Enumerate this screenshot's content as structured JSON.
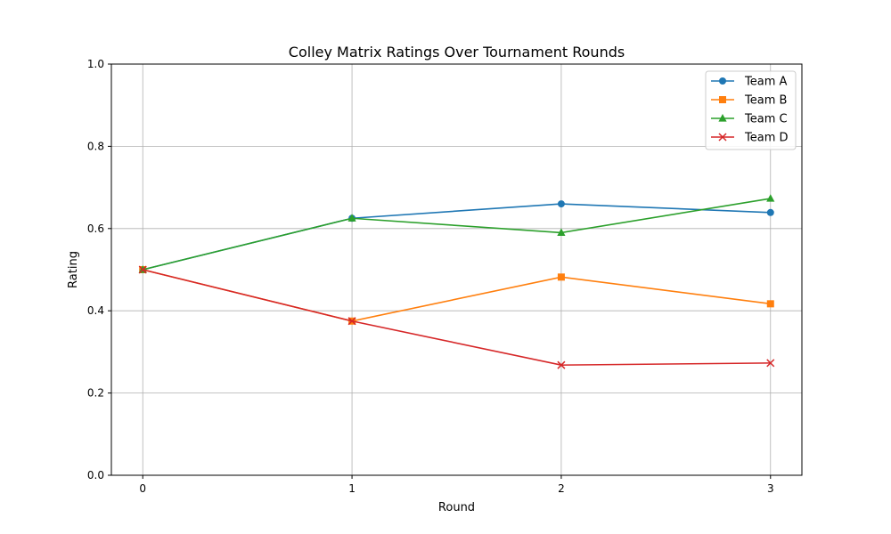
{
  "chart_data": {
    "type": "line",
    "title": "Colley Matrix Ratings Over Tournament Rounds",
    "xlabel": "Round",
    "ylabel": "Rating",
    "x": [
      0,
      1,
      2,
      3
    ],
    "xticks": [
      "0",
      "1",
      "2",
      "3"
    ],
    "xlim": [
      -0.15,
      3.15
    ],
    "ylim": [
      0.0,
      1.0
    ],
    "yticks": [
      "0.0",
      "0.2",
      "0.4",
      "0.6",
      "0.8",
      "1.0"
    ],
    "grid": true,
    "legend_position": "top-right",
    "series": [
      {
        "name": "Team A",
        "values": [
          0.5,
          0.625,
          0.66,
          0.639
        ],
        "color": "#1f77b4",
        "marker": "circle"
      },
      {
        "name": "Team B",
        "values": [
          0.5,
          0.375,
          0.482,
          0.417
        ],
        "color": "#ff7f0e",
        "marker": "square"
      },
      {
        "name": "Team C",
        "values": [
          0.5,
          0.625,
          0.59,
          0.673
        ],
        "color": "#2ca02c",
        "marker": "triangle"
      },
      {
        "name": "Team D",
        "values": [
          0.5,
          0.375,
          0.268,
          0.273
        ],
        "color": "#d62728",
        "marker": "x"
      }
    ]
  }
}
